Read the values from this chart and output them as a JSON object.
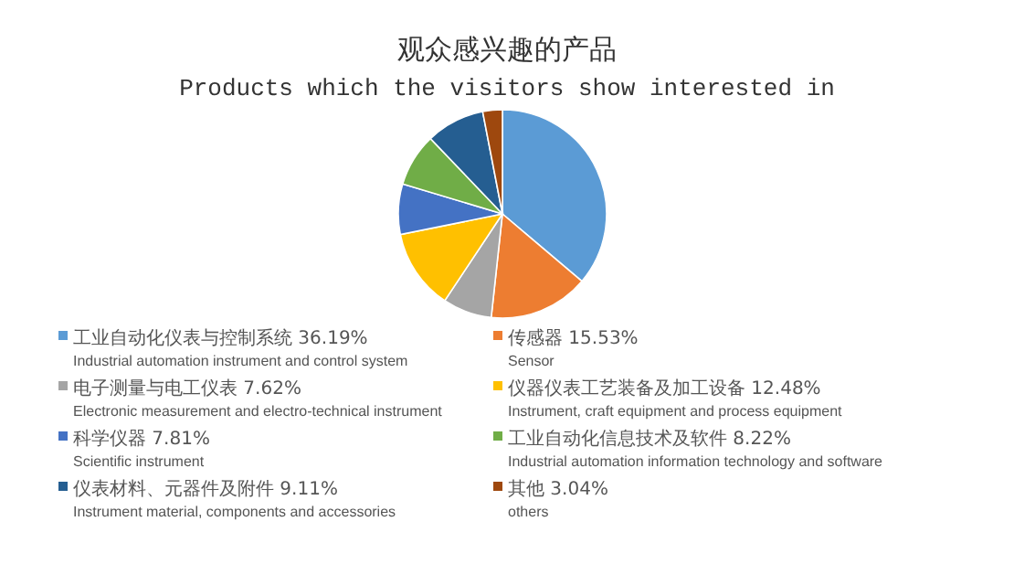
{
  "chart_data": {
    "type": "pie",
    "title": "观众感兴趣的产品",
    "subtitle": "Products which the visitors show interested in",
    "categories": [
      "工业自动化仪表与控制系统 36.19%\nIndustrial automation instrument and control system",
      "传感器 15.53%\nSensor",
      "电子测量与电工仪表 7.62%\nElectronic measurement and electro-technical instrument",
      "仪器仪表工艺装备及加工设备 12.48%\nInstrument, craft equipment and process equipment",
      "科学仪器 7.81%\nScientific instrument",
      "工业自动化信息技术及软件 8.22%\nIndustrial automation information technology and software",
      "仪表材料、元器件及附件 9.11%\nInstrument material, components and accessories",
      "其他 3.04%\nothers"
    ],
    "values": [
      36.19,
      15.53,
      7.62,
      12.48,
      7.81,
      8.22,
      9.11,
      3.04
    ],
    "colors": [
      "#5b9bd5",
      "#ed7d31",
      "#a5a5a5",
      "#ffc000",
      "#4472c4",
      "#70ad47",
      "#255e91",
      "#9e480e"
    ],
    "legend": "bottom"
  }
}
